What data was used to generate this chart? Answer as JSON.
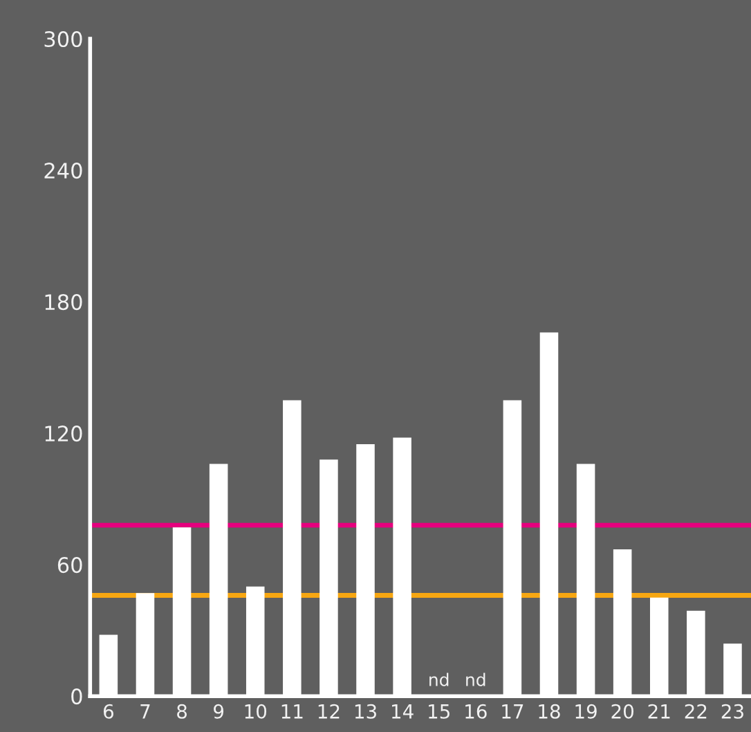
{
  "chart_data": {
    "type": "bar",
    "categories": [
      "6",
      "7",
      "8",
      "9",
      "10",
      "11",
      "12",
      "13",
      "14",
      "15",
      "16",
      "17",
      "18",
      "19",
      "20",
      "21",
      "22",
      "23"
    ],
    "values": [
      28,
      47,
      77,
      106,
      50,
      135,
      108,
      115,
      118,
      null,
      null,
      135,
      166,
      106,
      67,
      45,
      39,
      24
    ],
    "color": "#ffffff",
    "ylim": [
      0,
      300
    ],
    "yticks": [
      0,
      60,
      120,
      180,
      240,
      300
    ],
    "grid": false,
    "ref_lines": [
      {
        "axis": "y",
        "value": 78,
        "color": "#e6007e"
      },
      {
        "axis": "y",
        "value": 46,
        "color": "#f7a712"
      }
    ],
    "annotations": [
      "nd",
      "nd"
    ]
  }
}
